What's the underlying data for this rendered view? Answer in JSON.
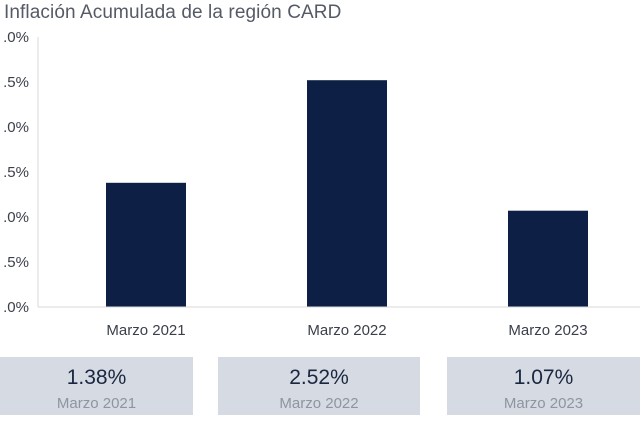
{
  "chart_data": {
    "type": "bar",
    "title": "Inflación Acumulada de la región CARD",
    "categories": [
      "Marzo 2021",
      "Marzo 2022",
      "Marzo 2023"
    ],
    "values": [
      1.38,
      2.52,
      1.07
    ],
    "ylim": [
      0,
      3.0
    ],
    "yticks": [
      ".0%",
      ".5%",
      ".0%",
      ".5%",
      ".0%",
      ".5%",
      ".0%"
    ],
    "bar_color": "#0d1f44",
    "grid": false
  },
  "cards": [
    {
      "value": "1.38%",
      "label": "Marzo 2021"
    },
    {
      "value": "2.52%",
      "label": "Marzo 2022"
    },
    {
      "value": "1.07%",
      "label": "Marzo 2023"
    }
  ],
  "colors": {
    "card_bg": "#d6dae2",
    "axis": "#d9d9d9"
  }
}
